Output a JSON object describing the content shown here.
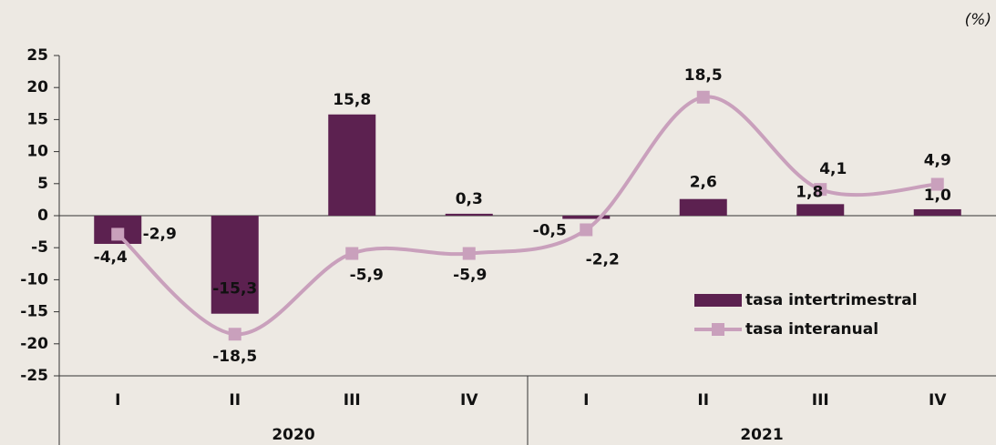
{
  "chart_data": {
    "type": "bar-line",
    "unit_note": "(%)",
    "categories": [
      "I",
      "II",
      "III",
      "IV",
      "I",
      "II",
      "III",
      "IV"
    ],
    "groups": [
      "2020",
      "2021"
    ],
    "series": [
      {
        "name": "tasa intertrimestral",
        "type": "bar",
        "color": "#5c2150",
        "values": [
          -4.4,
          -15.3,
          15.8,
          0.3,
          -0.5,
          2.6,
          1.8,
          1.0
        ],
        "value_labels": [
          "-4,4",
          "-15,3",
          "15,8",
          "0,3",
          "-0,5",
          "2,6",
          "1,8",
          "1,0"
        ]
      },
      {
        "name": "tasa interanual",
        "type": "line",
        "color": "#c9a0bc",
        "values": [
          -2.9,
          -18.5,
          -5.9,
          -5.9,
          -2.2,
          18.5,
          4.1,
          4.9
        ],
        "value_labels": [
          "-2,9",
          "-18,5",
          "-5,9",
          "-5,9",
          "-2,2",
          "18,5",
          "4,1",
          "4,9"
        ]
      }
    ],
    "ylim": [
      -25,
      25
    ],
    "yticks": [
      25,
      20,
      15,
      10,
      5,
      0,
      -5,
      -10,
      -15,
      -20,
      -25
    ],
    "legend": "center-right"
  }
}
